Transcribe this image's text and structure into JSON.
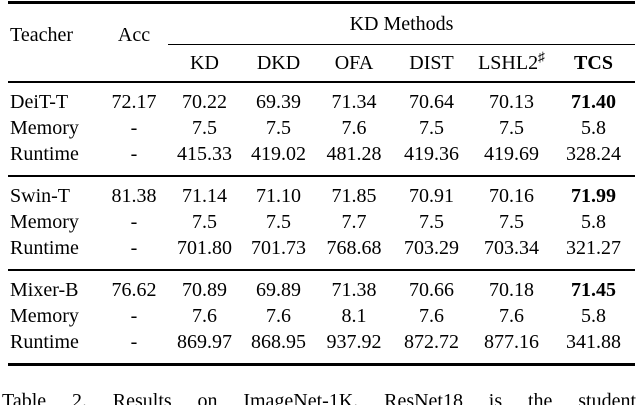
{
  "table": {
    "header": {
      "teacher": "Teacher",
      "acc": "Acc",
      "kd_methods": "KD Methods",
      "methods": [
        "KD",
        "DKD",
        "OFA",
        "DIST",
        "LSHL2",
        "TCS"
      ],
      "lshl2_sup": "♯"
    },
    "groups": [
      {
        "rows": [
          {
            "label": "DeiT-T",
            "acc": "72.17",
            "values": [
              "70.22",
              "69.39",
              "71.34",
              "70.64",
              "70.13",
              "71.40"
            ],
            "bold_tcs": true
          },
          {
            "label": "Memory",
            "acc": "-",
            "values": [
              "7.5",
              "7.5",
              "7.6",
              "7.5",
              "7.5",
              "5.8"
            ],
            "bold_tcs": false
          },
          {
            "label": "Runtime",
            "acc": "-",
            "values": [
              "415.33",
              "419.02",
              "481.28",
              "419.36",
              "419.69",
              "328.24"
            ],
            "bold_tcs": false
          }
        ]
      },
      {
        "rows": [
          {
            "label": "Swin-T",
            "acc": "81.38",
            "values": [
              "71.14",
              "71.10",
              "71.85",
              "70.91",
              "70.16",
              "71.99"
            ],
            "bold_tcs": true
          },
          {
            "label": "Memory",
            "acc": "-",
            "values": [
              "7.5",
              "7.5",
              "7.7",
              "7.5",
              "7.5",
              "5.8"
            ],
            "bold_tcs": false
          },
          {
            "label": "Runtime",
            "acc": "-",
            "values": [
              "701.80",
              "701.73",
              "768.68",
              "703.29",
              "703.34",
              "321.27"
            ],
            "bold_tcs": false
          }
        ]
      },
      {
        "rows": [
          {
            "label": "Mixer-B",
            "acc": "76.62",
            "values": [
              "70.89",
              "69.89",
              "71.38",
              "70.66",
              "70.18",
              "71.45"
            ],
            "bold_tcs": true
          },
          {
            "label": "Memory",
            "acc": "-",
            "values": [
              "7.6",
              "7.6",
              "8.1",
              "7.6",
              "7.6",
              "5.8"
            ],
            "bold_tcs": false
          },
          {
            "label": "Runtime",
            "acc": "-",
            "values": [
              "869.97",
              "868.95",
              "937.92",
              "872.72",
              "877.16",
              "341.88"
            ],
            "bold_tcs": false
          }
        ]
      }
    ]
  },
  "caption": "Table 2. Results on ImageNet-1K. ResNet18 is the student"
}
